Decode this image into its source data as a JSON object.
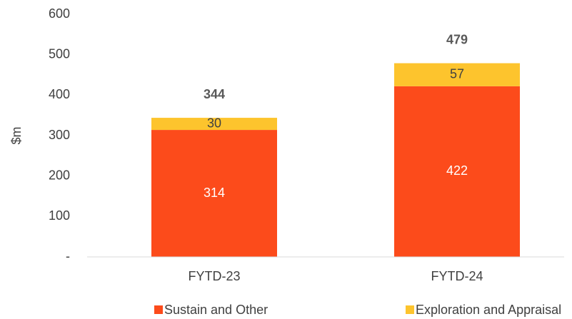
{
  "chart_data": {
    "type": "stacked_bar",
    "y_label": "$m",
    "categories": [
      "FYTD-23",
      "FYTD-24"
    ],
    "series": [
      {
        "name": "Sustain and Other",
        "color": "#fc4b1b",
        "values": [
          314,
          422
        ]
      },
      {
        "name": "Exploration and Appraisal",
        "color": "#fdc42d",
        "values": [
          30,
          57
        ]
      }
    ],
    "totals": [
      344,
      479
    ],
    "ylim": [
      0,
      600
    ],
    "yticks": [
      {
        "value": 0,
        "label": "-"
      },
      100,
      200,
      300,
      400,
      500,
      600
    ],
    "grid": false,
    "legend": "bottom"
  }
}
